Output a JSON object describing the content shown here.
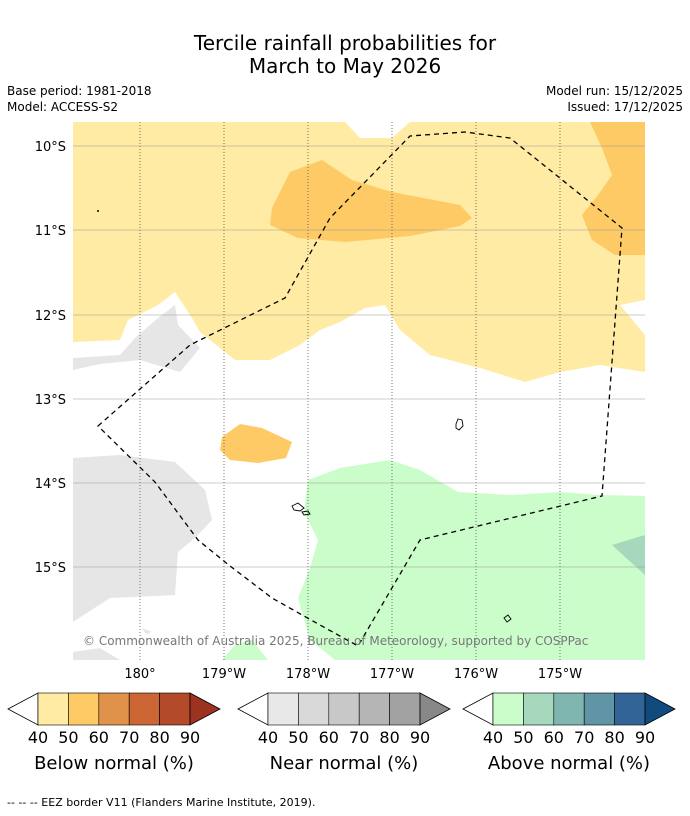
{
  "header": {
    "title_line1": "Tercile rainfall probabilities for",
    "title_line2": "March to May 2026",
    "base_period": "Base period: 1981-2018",
    "model": "Model: ACCESS-S2",
    "model_run": "Model run: 15/12/2025",
    "issued": "Issued: 17/12/2025"
  },
  "map": {
    "lat_labels": [
      "10°S",
      "11°S",
      "12°S",
      "13°S",
      "14°S",
      "15°S"
    ],
    "lon_labels": [
      "180°",
      "179°W",
      "178°W",
      "177°W",
      "176°W",
      "175°W"
    ],
    "copyright": "© Commonwealth of Australia 2025, Bureau of Meteorology, supported by COSPPac"
  },
  "colorbars": [
    {
      "label": "Below normal (%)",
      "ticks": [
        "40",
        "50",
        "60",
        "70",
        "80",
        "90"
      ],
      "colors": [
        "#ffffff",
        "#ffeba3",
        "#fdca65",
        "#e0924a",
        "#cc6634",
        "#b34b2a",
        "#9c3321"
      ]
    },
    {
      "label": "Near normal (%)",
      "ticks": [
        "40",
        "50",
        "60",
        "70",
        "80",
        "90"
      ],
      "colors": [
        "#ffffff",
        "#e8e8e8",
        "#d9d9d9",
        "#c8c8c8",
        "#b5b5b5",
        "#a2a2a2",
        "#888888"
      ]
    },
    {
      "label": "Above normal (%)",
      "ticks": [
        "40",
        "50",
        "60",
        "70",
        "80",
        "90"
      ],
      "colors": [
        "#ffffff",
        "#cbfdcb",
        "#a5d8bc",
        "#80b6b0",
        "#5f95a4",
        "#326498",
        "#114a7c"
      ]
    }
  ],
  "footer": {
    "legend_text": "-- -- -- EEZ border V11 (Flanders Marine Institute, 2019)."
  }
}
